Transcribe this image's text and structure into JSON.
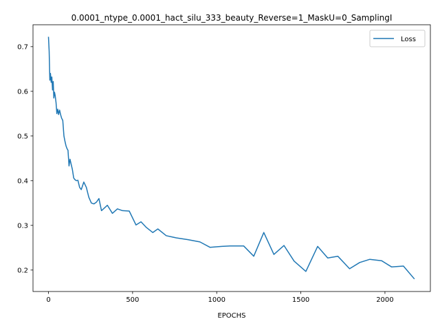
{
  "chart_data": {
    "type": "line",
    "title": "0.0001_ntype_0.0001_hact_silu_333_beauty_Reverse=1_MaskU=0_SamplingI",
    "xlabel": "EPOCHS",
    "ylabel": "",
    "xlim": [
      -92,
      2270
    ],
    "ylim": [
      0.152,
      0.749
    ],
    "xticks": [
      0,
      500,
      1000,
      1500,
      2000
    ],
    "yticks": [
      0.2,
      0.3,
      0.4,
      0.5,
      0.6,
      0.7
    ],
    "xtick_labels": [
      "0",
      "500",
      "1000",
      "1500",
      "2000"
    ],
    "ytick_labels": [
      "0.2",
      "0.3",
      "0.4",
      "0.5",
      "0.6",
      "0.7"
    ],
    "grid": false,
    "legend_position": "top-right",
    "series": [
      {
        "name": "Loss",
        "color": "#1f77b4",
        "x": [
          0,
          4,
          8,
          12,
          16,
          20,
          24,
          28,
          32,
          36,
          40,
          45,
          50,
          55,
          60,
          66,
          72,
          78,
          85,
          92,
          98,
          104,
          110,
          116,
          122,
          128,
          134,
          142,
          150,
          158,
          166,
          175,
          185,
          195,
          210,
          225,
          240,
          255,
          270,
          285,
          300,
          315,
          330,
          350,
          380,
          410,
          440,
          480,
          520,
          550,
          580,
          620,
          650,
          700,
          760,
          830,
          900,
          960,
          1030,
          1080,
          1160,
          1220,
          1280,
          1340,
          1400,
          1460,
          1530,
          1600,
          1660,
          1720,
          1790,
          1850,
          1910,
          1980,
          2040,
          2110,
          2175
        ],
        "values": [
          0.722,
          0.69,
          0.625,
          0.64,
          0.62,
          0.632,
          0.603,
          0.622,
          0.585,
          0.598,
          0.59,
          0.575,
          0.55,
          0.56,
          0.548,
          0.558,
          0.548,
          0.54,
          0.535,
          0.5,
          0.488,
          0.478,
          0.472,
          0.468,
          0.433,
          0.448,
          0.438,
          0.425,
          0.406,
          0.402,
          0.4,
          0.401,
          0.385,
          0.38,
          0.397,
          0.385,
          0.363,
          0.35,
          0.348,
          0.352,
          0.36,
          0.333,
          0.338,
          0.345,
          0.327,
          0.337,
          0.333,
          0.332,
          0.301,
          0.308,
          0.296,
          0.284,
          0.292,
          0.277,
          0.272,
          0.268,
          0.263,
          0.251,
          0.253,
          0.254,
          0.254,
          0.231,
          0.284,
          0.235,
          0.255,
          0.22,
          0.197,
          0.253,
          0.227,
          0.231,
          0.203,
          0.217,
          0.224,
          0.221,
          0.207,
          0.209,
          0.18
        ]
      }
    ]
  }
}
